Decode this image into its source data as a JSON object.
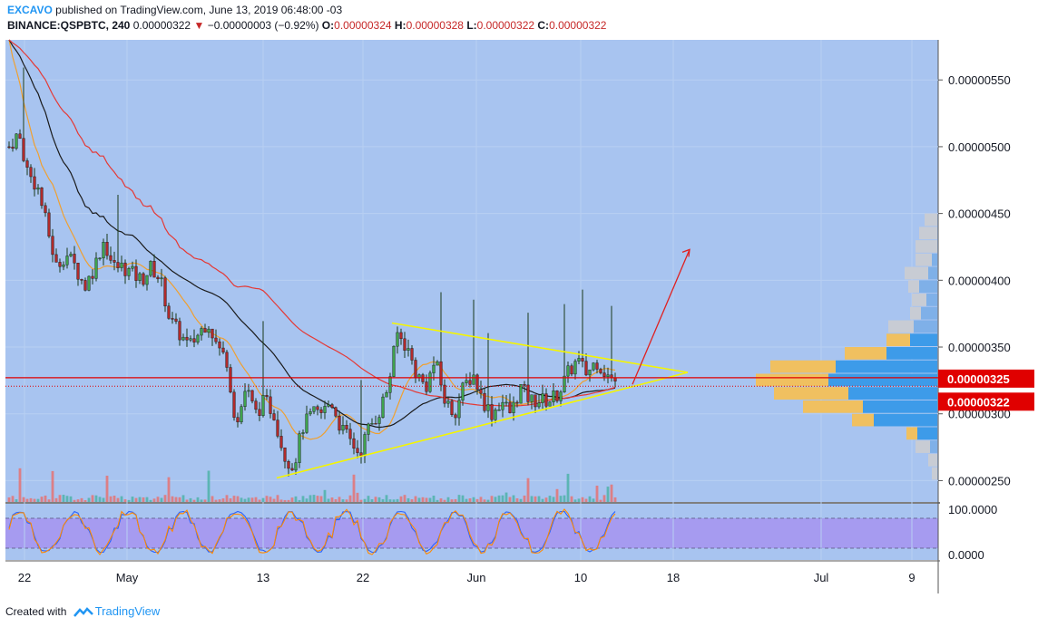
{
  "header": {
    "publisher": "EXCAVO",
    "published_text": "published on TradingView.com, June 13, 2019 06:48:00 -03",
    "symbol": "BINANCE:QSPBTC, 240",
    "last": "0.00000322",
    "change": "−0.00000003 (−0.92%)",
    "o_label": "O:",
    "o": "0.00000324",
    "h_label": "H:",
    "h": "0.00000328",
    "l_label": "L:",
    "l": "0.00000322",
    "c_label": "C:",
    "c": "0.00000322"
  },
  "footer": {
    "created_with": "Created with",
    "brand": "TradingView"
  },
  "colors": {
    "background": "#a8c4f0",
    "up_candle": "#26a69a",
    "down_candle": "#ef5350",
    "ma_black": "#1a1a1a",
    "ma_red": "#e53935",
    "ma_orange": "#f0a030",
    "triangle": "#f5f500",
    "price_line": "#e00000",
    "stoch_band": "#a58df0",
    "vol_profile_value_area": "#3d9be9",
    "vol_profile_outside": "#f0c060"
  },
  "chart_data": [
    {
      "type": "candlestick",
      "x_tick_labels": [
        "22",
        "May",
        "13",
        "22",
        "Jun",
        "10",
        "18",
        "Jul",
        "9"
      ],
      "y_tick_labels": [
        "0.00000550",
        "0.00000500",
        "0.00000450",
        "0.00000400",
        "0.00000350",
        "0.00000300",
        "0.00000250"
      ],
      "y_ticks": [
        5.5e-06,
        5e-06,
        4.5e-06,
        4e-06,
        3.5e-06,
        3e-06,
        2.5e-06
      ],
      "ylim": [
        2.34e-06,
        5.8e-06
      ],
      "price_labels": [
        {
          "text": "0.00000325",
          "value": 3.25e-06
        },
        {
          "text": "0.00000322",
          "value": 3.22e-06
        }
      ],
      "closes": [
        5e-06,
        5.1e-06,
        4.8e-06,
        4.7e-06,
        4.4e-06,
        4.1e-06,
        4.2e-06,
        4.1e-06,
        3.95e-06,
        4.1e-06,
        4.3e-06,
        4.1e-06,
        4.1e-06,
        4.05e-06,
        4e-06,
        4.1e-06,
        4e-06,
        3.7e-06,
        3.6e-06,
        3.5e-06,
        3.6e-06,
        3.7e-06,
        3.5e-06,
        3.4e-06,
        2.9e-06,
        3.2e-06,
        3e-06,
        3.1e-06,
        3e-06,
        2.7e-06,
        2.6e-06,
        2.9e-06,
        3e-06,
        3e-06,
        3.1e-06,
        2.9e-06,
        2.8e-06,
        2.7e-06,
        2.9e-06,
        3e-06,
        3.2e-06,
        3.6e-06,
        3.5e-06,
        3.3e-06,
        3.2e-06,
        3.4e-06,
        3.1e-06,
        3e-06,
        3.2e-06,
        3.3e-06,
        3.1e-06,
        3e-06,
        3.1e-06,
        3e-06,
        3.2e-06,
        3.1e-06,
        3.1e-06,
        3.1e-06,
        3.15e-06,
        3.3e-06,
        3.4e-06,
        3.3e-06,
        3.4e-06,
        3.3e-06,
        3.22e-06
      ],
      "triangle_upper": [
        {
          "date": "Apr 24",
          "value": 3.68e-06
        },
        {
          "date": "Jun 18",
          "value": 3.31e-06
        }
      ],
      "triangle_lower": [
        {
          "date": "May 14",
          "value": 2.52e-06
        },
        {
          "date": "Jun 18",
          "value": 3.31e-06
        }
      ],
      "projection_arrow": [
        {
          "date": "Jun 14",
          "value": 3.22e-06
        },
        {
          "date": "Jun 21",
          "value": 4.23e-06
        }
      ]
    },
    {
      "type": "line",
      "name": "Stoch RSI",
      "y_tick_labels": [
        "100.0000",
        "0.0000"
      ],
      "ylim": [
        0,
        100
      ],
      "band": [
        20,
        80
      ]
    }
  ]
}
